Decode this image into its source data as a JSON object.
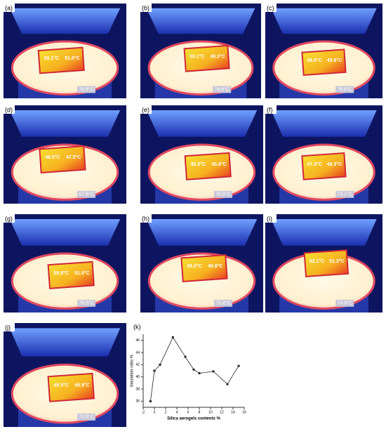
{
  "panels": [
    {
      "label": "(a)",
      "readings": [
        "50.1°C",
        "51.0°C"
      ],
      "scale": "76.6°C"
    },
    {
      "label": "(b)",
      "readings": [
        "50.1°C",
        "48.3°C"
      ],
      "scale": "76.6°C"
    },
    {
      "label": "(c)",
      "readings": [
        "48.6°C",
        "49.8°C"
      ],
      "scale": "76.6°C"
    },
    {
      "label": "(d)",
      "readings": [
        "46.5°C",
        "47.5°C"
      ],
      "scale": "67.6°C"
    },
    {
      "label": "(e)",
      "readings": [
        "45.3°C",
        "45.6°C"
      ],
      "scale": "70.8°C"
    },
    {
      "label": "(f)",
      "readings": [
        "47.3°C",
        "48.3°C"
      ],
      "scale": "73.1°C"
    },
    {
      "label": "(g)",
      "readings": [
        "50.9°C",
        "51.0°C"
      ],
      "scale": "76.5°C"
    },
    {
      "label": "(h)",
      "readings": [
        "45.0°C",
        "49.8°C"
      ],
      "scale": "75.8°C"
    },
    {
      "label": "(i)",
      "readings": [
        "52.1°C",
        "51.3°C"
      ],
      "scale": "74.9°C"
    },
    {
      "label": "(j)",
      "readings": [
        "45.5°C",
        "45.8°C"
      ],
      "scale": "70.5°C"
    }
  ],
  "chart_data": {
    "type": "line",
    "label": "(k)",
    "xlabel": "Silica aerogels contents %",
    "ylabel": "Insulation ratio %",
    "x": [
      -0.7,
      0,
      1,
      3.3,
      5.5,
      7,
      8,
      10.5,
      13,
      15
    ],
    "values": [
      36,
      41,
      42,
      46.5,
      43.3,
      41.2,
      40.6,
      40.9,
      38.8,
      41.8
    ],
    "color": "#222222",
    "xlim": [
      -2,
      16
    ],
    "xticks": [
      -2,
      0,
      2,
      4,
      6,
      8,
      10,
      12,
      14,
      16
    ],
    "ylim": [
      35,
      47
    ],
    "yticks": [
      36,
      38,
      40,
      42,
      44,
      46
    ]
  }
}
